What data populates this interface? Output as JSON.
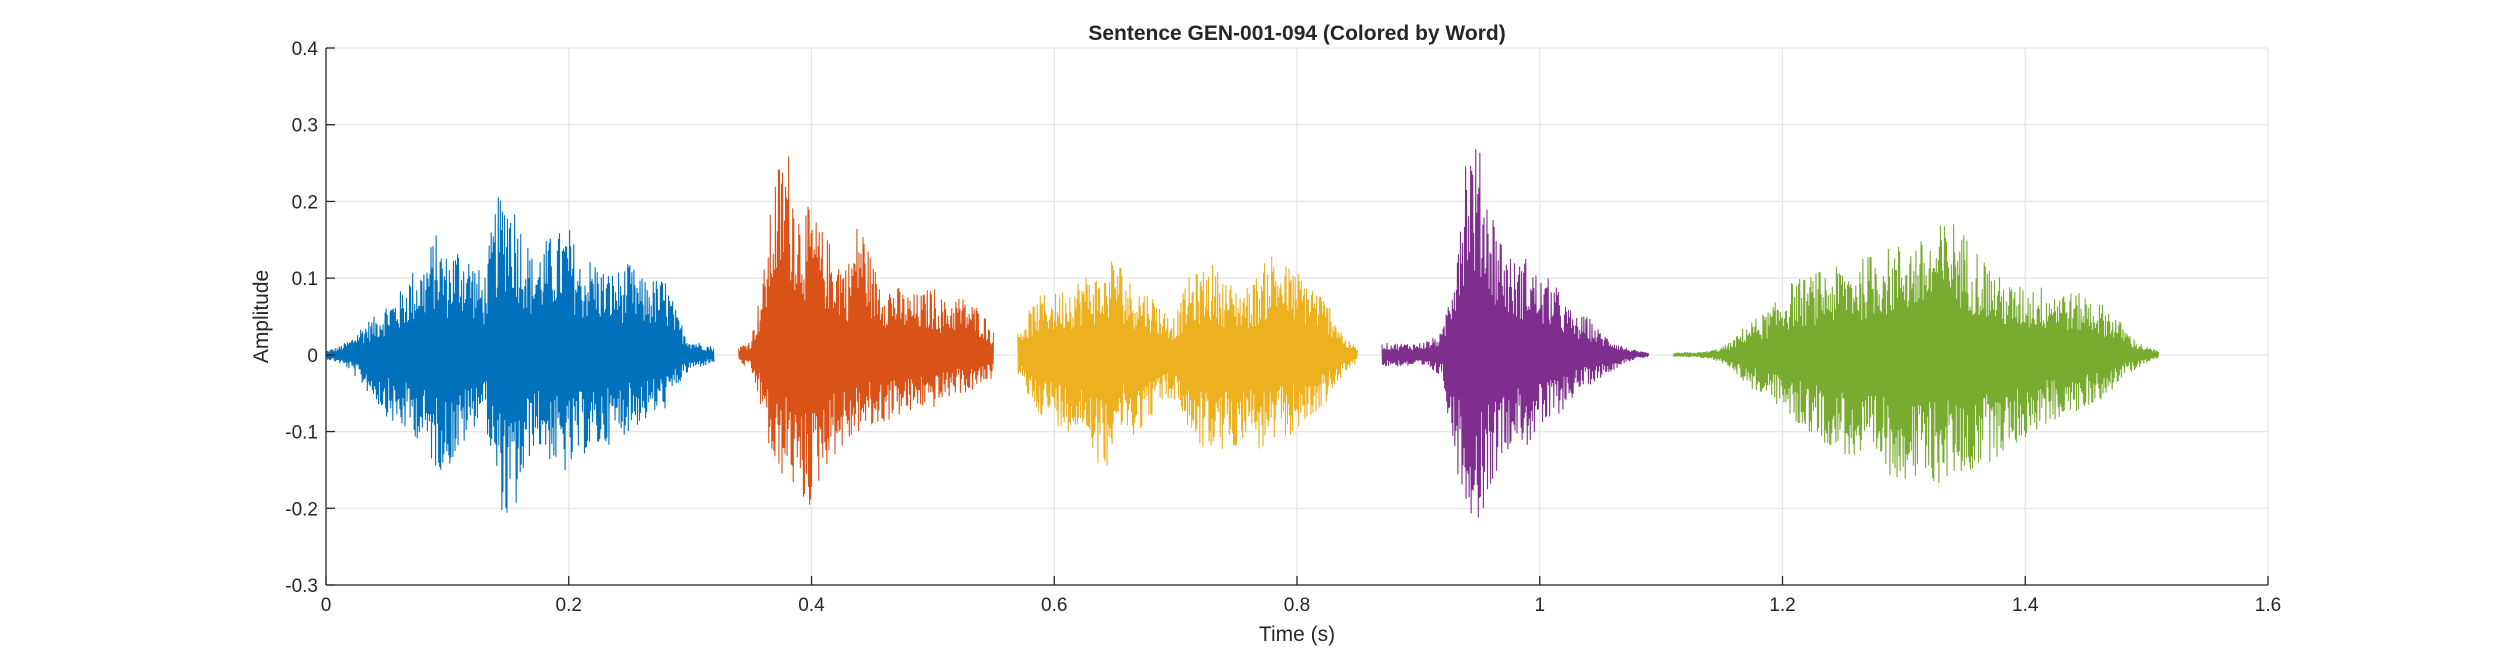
{
  "chart_data": {
    "type": "line",
    "title": "Sentence GEN-001-094 (Colored by Word)",
    "xlabel": "Time (s)",
    "ylabel": "Amplitude",
    "xlim": [
      0,
      1.6
    ],
    "ylim": [
      -0.3,
      0.4
    ],
    "xticks": [
      0,
      0.2,
      0.4,
      0.6,
      0.8,
      1,
      1.2,
      1.4,
      1.6
    ],
    "xtick_labels": [
      "0",
      "0.2",
      "0.4",
      "0.6",
      "0.8",
      "1",
      "1.2",
      "1.4",
      "1.6"
    ],
    "yticks": [
      -0.3,
      -0.2,
      -0.1,
      0,
      0.1,
      0.2,
      0.3,
      0.4
    ],
    "ytick_labels": [
      "-0.3",
      "-0.2",
      "-0.1",
      "0",
      "0.1",
      "0.2",
      "0.3",
      "0.4"
    ],
    "grid": true,
    "series": [
      {
        "color": "#0072BD",
        "x": [
          0.0,
          0.01,
          0.02,
          0.03,
          0.04,
          0.05,
          0.06,
          0.07,
          0.08,
          0.09,
          0.1,
          0.11,
          0.12,
          0.13,
          0.14,
          0.15,
          0.16,
          0.17,
          0.18,
          0.19,
          0.2,
          0.21,
          0.22,
          0.23,
          0.24,
          0.25,
          0.26,
          0.27,
          0.28,
          0.29,
          0.3,
          0.31,
          0.32
        ],
        "upper": [
          0.005,
          0.01,
          0.02,
          0.04,
          0.05,
          0.07,
          0.08,
          0.11,
          0.12,
          0.16,
          0.13,
          0.15,
          0.13,
          0.1,
          0.2,
          0.23,
          0.18,
          0.13,
          0.15,
          0.16,
          0.17,
          0.12,
          0.13,
          0.11,
          0.11,
          0.12,
          0.1,
          0.1,
          0.1,
          0.05,
          0.02,
          0.015,
          0.01
        ],
        "lower": [
          -0.005,
          -0.01,
          -0.02,
          -0.04,
          -0.06,
          -0.08,
          -0.1,
          -0.1,
          -0.12,
          -0.15,
          -0.15,
          -0.13,
          -0.1,
          -0.07,
          -0.18,
          -0.23,
          -0.19,
          -0.12,
          -0.13,
          -0.15,
          -0.16,
          -0.13,
          -0.13,
          -0.12,
          -0.11,
          -0.1,
          -0.09,
          -0.08,
          -0.07,
          -0.04,
          -0.02,
          -0.015,
          -0.01
        ]
      },
      {
        "color": "#D95319",
        "x": [
          0.34,
          0.35,
          0.36,
          0.37,
          0.38,
          0.39,
          0.4,
          0.41,
          0.42,
          0.43,
          0.44,
          0.45,
          0.46,
          0.47,
          0.48,
          0.49,
          0.5,
          0.51,
          0.52,
          0.53,
          0.54,
          0.55
        ],
        "upper": [
          0.01,
          0.02,
          0.1,
          0.24,
          0.28,
          0.2,
          0.19,
          0.16,
          0.14,
          0.12,
          0.19,
          0.12,
          0.1,
          0.09,
          0.08,
          0.08,
          0.09,
          0.07,
          0.08,
          0.07,
          0.06,
          0.03
        ],
        "lower": [
          -0.01,
          -0.02,
          -0.08,
          -0.17,
          -0.15,
          -0.2,
          -0.2,
          -0.15,
          -0.13,
          -0.12,
          -0.1,
          -0.1,
          -0.09,
          -0.08,
          -0.08,
          -0.07,
          -0.07,
          -0.06,
          -0.05,
          -0.05,
          -0.04,
          -0.03
        ]
      },
      {
        "color": "#EDB120",
        "x": [
          0.57,
          0.58,
          0.59,
          0.6,
          0.61,
          0.62,
          0.63,
          0.64,
          0.65,
          0.66,
          0.67,
          0.68,
          0.69,
          0.7,
          0.71,
          0.72,
          0.73,
          0.74,
          0.75,
          0.76,
          0.77,
          0.78,
          0.79,
          0.8,
          0.81,
          0.82,
          0.83,
          0.84,
          0.85
        ],
        "upper": [
          0.03,
          0.06,
          0.08,
          0.08,
          0.09,
          0.1,
          0.11,
          0.1,
          0.14,
          0.1,
          0.09,
          0.08,
          0.06,
          0.05,
          0.1,
          0.11,
          0.12,
          0.1,
          0.09,
          0.09,
          0.11,
          0.14,
          0.12,
          0.11,
          0.1,
          0.08,
          0.06,
          0.02,
          0.01
        ],
        "lower": [
          -0.03,
          -0.06,
          -0.08,
          -0.09,
          -0.1,
          -0.1,
          -0.11,
          -0.17,
          -0.1,
          -0.11,
          -0.1,
          -0.08,
          -0.06,
          -0.06,
          -0.1,
          -0.12,
          -0.13,
          -0.13,
          -0.12,
          -0.1,
          -0.13,
          -0.12,
          -0.11,
          -0.1,
          -0.09,
          -0.07,
          -0.05,
          -0.02,
          -0.01
        ]
      },
      {
        "color": "#7E2F8E",
        "x": [
          0.87,
          0.88,
          0.89,
          0.9,
          0.91,
          0.92,
          0.93,
          0.94,
          0.95,
          0.96,
          0.97,
          0.98,
          0.99,
          1.0,
          1.01,
          1.02,
          1.03,
          1.04,
          1.05,
          1.06,
          1.07,
          1.08,
          1.09
        ],
        "upper": [
          0.015,
          0.015,
          0.015,
          0.015,
          0.02,
          0.03,
          0.14,
          0.3,
          0.27,
          0.2,
          0.15,
          0.12,
          0.13,
          0.1,
          0.1,
          0.07,
          0.05,
          0.05,
          0.03,
          0.02,
          0.01,
          0.005,
          0.002
        ],
        "lower": [
          -0.015,
          -0.015,
          -0.015,
          -0.015,
          -0.02,
          -0.03,
          -0.14,
          -0.2,
          -0.22,
          -0.17,
          -0.13,
          -0.11,
          -0.12,
          -0.1,
          -0.09,
          -0.07,
          -0.05,
          -0.04,
          -0.03,
          -0.02,
          -0.01,
          -0.005,
          -0.002
        ]
      },
      {
        "color": "#77AC30",
        "x": [
          1.11,
          1.12,
          1.13,
          1.14,
          1.15,
          1.16,
          1.17,
          1.18,
          1.19,
          1.2,
          1.21,
          1.22,
          1.23,
          1.24,
          1.25,
          1.26,
          1.27,
          1.28,
          1.29,
          1.3,
          1.31,
          1.32,
          1.33,
          1.34,
          1.35,
          1.36,
          1.37,
          1.38,
          1.39,
          1.4,
          1.41,
          1.42,
          1.43,
          1.44,
          1.45,
          1.46,
          1.47,
          1.48,
          1.49,
          1.5,
          1.51
        ],
        "upper": [
          0.002,
          0.003,
          0.003,
          0.005,
          0.01,
          0.02,
          0.04,
          0.05,
          0.06,
          0.08,
          0.1,
          0.1,
          0.11,
          0.11,
          0.12,
          0.12,
          0.13,
          0.14,
          0.14,
          0.15,
          0.15,
          0.15,
          0.17,
          0.18,
          0.16,
          0.14,
          0.12,
          0.1,
          0.09,
          0.09,
          0.09,
          0.09,
          0.09,
          0.08,
          0.08,
          0.07,
          0.06,
          0.04,
          0.02,
          0.01,
          0.005
        ],
        "lower": [
          -0.002,
          -0.003,
          -0.003,
          -0.005,
          -0.01,
          -0.02,
          -0.04,
          -0.05,
          -0.06,
          -0.07,
          -0.09,
          -0.1,
          -0.11,
          -0.12,
          -0.13,
          -0.14,
          -0.15,
          -0.15,
          -0.16,
          -0.16,
          -0.17,
          -0.17,
          -0.17,
          -0.16,
          -0.16,
          -0.15,
          -0.14,
          -0.13,
          -0.12,
          -0.11,
          -0.1,
          -0.09,
          -0.08,
          -0.08,
          -0.07,
          -0.06,
          -0.05,
          -0.03,
          -0.02,
          -0.01,
          -0.005
        ]
      }
    ]
  }
}
